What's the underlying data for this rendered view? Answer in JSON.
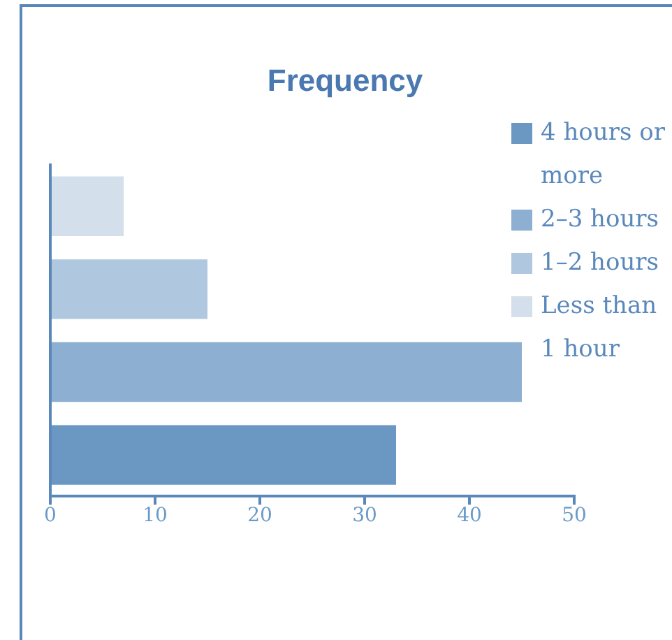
{
  "chart_data": {
    "type": "bar",
    "orientation": "horizontal",
    "stacked": true,
    "title": "Frequency",
    "categories": [
      null,
      null,
      null,
      null
    ],
    "series": [
      {
        "name": "4 hours or more",
        "color": "#6b98c2",
        "values": [
          null,
          null,
          null,
          33
        ]
      },
      {
        "name": "2–3 hours",
        "color": "#8cafd2",
        "values": [
          null,
          null,
          45,
          null
        ]
      },
      {
        "name": "1–2 hours",
        "color": "#afc7df",
        "values": [
          null,
          15,
          null,
          null
        ]
      },
      {
        "name": "Less than 1 hour",
        "color": "#d4dfec",
        "values": [
          7,
          null,
          null,
          null
        ]
      }
    ],
    "xlim": [
      0,
      50
    ],
    "xticks": [
      0,
      10,
      20,
      30,
      40,
      50
    ],
    "grid": false,
    "legend": "top right"
  }
}
